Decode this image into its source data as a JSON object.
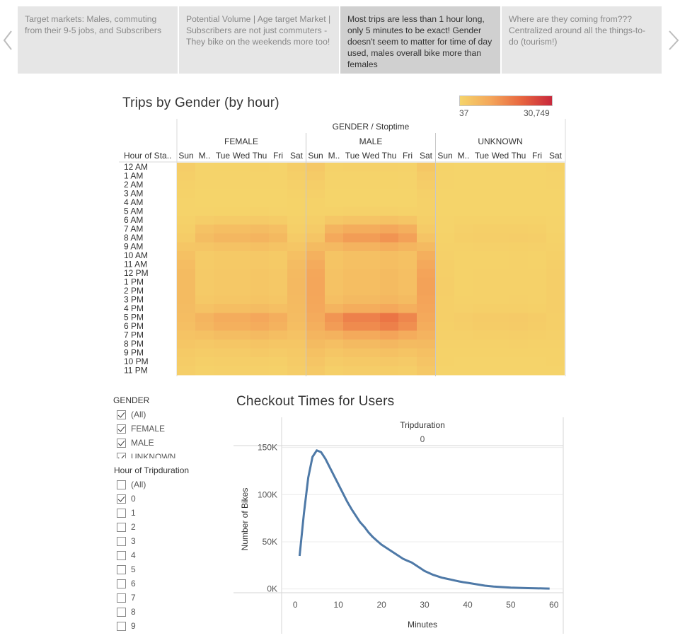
{
  "story": {
    "points": [
      {
        "text": "Target markets:  Males, commuting from their 9-5 jobs, and Subscribers",
        "active": false
      },
      {
        "text": "Potential Volume | Age target Market | Subscribers are not just commuters - They bike on the weekends more too!",
        "active": false
      },
      {
        "text": "Most trips are less than 1 hour long, only 5 minutes to be exact!  Gender doesn't seem to matter for time of day used, males overall bike more than females",
        "active": true
      },
      {
        "text": "Where are they coming from??? Centralized around all the things-to-do (tourism!)",
        "active": false
      }
    ],
    "prev_icon": "chevron-left-icon",
    "next_icon": "chevron-right-icon"
  },
  "heatmap": {
    "title": "Trips by Gender (by hour)",
    "legend": {
      "min_label": "37",
      "max_label": "30,749",
      "min_color": "#f5d46a",
      "max_color": "#c8283c"
    },
    "header": "GENDER / Stoptime",
    "row_header": "Hour of Sta..",
    "groups": [
      "FEMALE",
      "MALE",
      "UNKNOWN"
    ],
    "days": [
      "Sun",
      "M..",
      "Tue",
      "Wed",
      "Thu",
      "Fri",
      "Sat"
    ],
    "hours": [
      "12 AM",
      "1 AM",
      "2 AM",
      "3 AM",
      "4 AM",
      "5 AM",
      "6 AM",
      "7 AM",
      "8 AM",
      "9 AM",
      "10 AM",
      "11 AM",
      "12 PM",
      "1 PM",
      "2 PM",
      "3 PM",
      "4 PM",
      "5 PM",
      "6 PM",
      "7 PM",
      "8 PM",
      "9 PM",
      "10 PM",
      "11 PM"
    ]
  },
  "chart_data": {
    "type": "heatmap",
    "title": "Trips by Gender (by hour)",
    "color_range": [
      37,
      30749
    ],
    "note_values": "approximate relative intensity 0-1 per hour per day",
    "groups": [
      "FEMALE",
      "MALE",
      "UNKNOWN"
    ],
    "days": [
      "Sun",
      "M..",
      "Tue",
      "Wed",
      "Thu",
      "Fri",
      "Sat"
    ],
    "hours": [
      "12 AM",
      "1 AM",
      "2 AM",
      "3 AM",
      "4 AM",
      "5 AM",
      "6 AM",
      "7 AM",
      "8 AM",
      "9 AM",
      "10 AM",
      "11 AM",
      "12 PM",
      "1 PM",
      "2 PM",
      "3 PM",
      "4 PM",
      "5 PM",
      "6 PM",
      "7 PM",
      "8 PM",
      "9 PM",
      "10 PM",
      "11 PM"
    ],
    "weekday_profile": [
      0.02,
      0.01,
      0.01,
      0.0,
      0.0,
      0.02,
      0.12,
      0.3,
      0.4,
      0.25,
      0.15,
      0.15,
      0.17,
      0.17,
      0.17,
      0.2,
      0.3,
      0.55,
      0.5,
      0.32,
      0.2,
      0.13,
      0.08,
      0.05
    ],
    "weekend_profile": [
      0.1,
      0.07,
      0.05,
      0.03,
      0.02,
      0.02,
      0.04,
      0.07,
      0.12,
      0.2,
      0.28,
      0.33,
      0.36,
      0.37,
      0.37,
      0.36,
      0.35,
      0.33,
      0.3,
      0.25,
      0.2,
      0.15,
      0.12,
      0.09
    ],
    "group_scale": [
      0.55,
      1.0,
      0.12
    ]
  },
  "filters": {
    "gender": {
      "title": "GENDER",
      "items": [
        {
          "label": "(All)",
          "checked": true
        },
        {
          "label": "FEMALE",
          "checked": true
        },
        {
          "label": "MALE",
          "checked": true
        },
        {
          "label": "UNKNOWN",
          "checked": true
        }
      ]
    },
    "hour_tripduration": {
      "title": "Hour of Tripduration",
      "items": [
        {
          "label": "(All)",
          "checked": false
        },
        {
          "label": "0",
          "checked": true
        },
        {
          "label": "1",
          "checked": false
        },
        {
          "label": "2",
          "checked": false
        },
        {
          "label": "3",
          "checked": false
        },
        {
          "label": "4",
          "checked": false
        },
        {
          "label": "5",
          "checked": false
        },
        {
          "label": "6",
          "checked": false
        },
        {
          "label": "7",
          "checked": false
        },
        {
          "label": "8",
          "checked": false
        },
        {
          "label": "9",
          "checked": false
        }
      ]
    }
  },
  "line_chart": {
    "title": "Checkout Times for Users",
    "header": "Tripduration",
    "panel": "0",
    "xlabel": "Minutes",
    "ylabel": "Number of Bikes",
    "x_ticks": [
      "0",
      "10",
      "20",
      "30",
      "40",
      "50",
      "60"
    ],
    "y_ticks": [
      "150K",
      "100K",
      "50K",
      "0K"
    ],
    "line_color": "#4e79a7",
    "x": [
      1,
      2,
      3,
      4,
      5,
      6,
      7,
      8,
      9,
      10,
      11,
      12,
      13,
      14,
      15,
      16,
      17,
      18,
      19,
      20,
      21,
      22,
      23,
      24,
      25,
      26,
      27,
      28,
      29,
      30,
      31,
      32,
      33,
      34,
      35,
      36,
      37,
      38,
      39,
      40,
      42,
      44,
      46,
      48,
      50,
      52,
      54,
      56,
      58,
      59
    ],
    "y": [
      35000,
      80000,
      118000,
      140000,
      147000,
      145000,
      138000,
      129000,
      120000,
      111000,
      102000,
      93000,
      85000,
      78000,
      71000,
      66000,
      60000,
      55000,
      51000,
      47000,
      44000,
      41000,
      38000,
      35000,
      32000,
      30000,
      28000,
      25000,
      22000,
      19000,
      17000,
      15000,
      13500,
      12000,
      11000,
      10000,
      9000,
      8000,
      7200,
      6500,
      5000,
      3500,
      2500,
      2000,
      1500,
      1200,
      900,
      700,
      500,
      400
    ],
    "xlim": [
      -3,
      62
    ],
    "ylim": [
      -4000,
      152000
    ]
  }
}
